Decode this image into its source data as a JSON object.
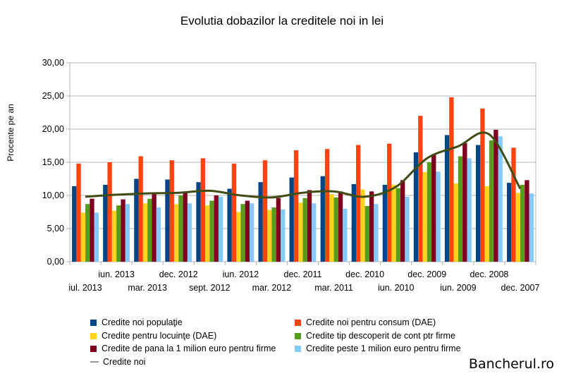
{
  "title": "Evolutia dobazilor la creditele noi in lei",
  "watermark": "Bancherul.ro",
  "chart_data": {
    "type": "bar",
    "title": "Evolutia dobazilor la creditele noi in lei",
    "ylabel": "Procente pe an",
    "xlabel": "",
    "ylim": [
      0,
      30
    ],
    "y_ticks": [
      "0,00",
      "5,00",
      "10,00",
      "15,00",
      "20,00",
      "25,00",
      "30,00"
    ],
    "grid": true,
    "legend_position": "bottom",
    "categories": [
      "iul. 2013",
      "iun. 2013",
      "mar. 2013",
      "dec. 2012",
      "sept. 2012",
      "iun. 2012",
      "mar. 2012",
      "dec. 2011",
      "mar. 2011",
      "dec. 2010",
      "iun. 2010",
      "dec. 2009",
      "iun. 2009",
      "dec. 2008",
      "dec. 2007"
    ],
    "x_labels_row1": [
      "",
      "iun. 2013",
      "",
      "dec. 2012",
      "",
      "iun. 2012",
      "",
      "dec. 2011",
      "",
      "dec. 2010",
      "",
      "dec. 2009",
      "",
      "dec. 2008",
      ""
    ],
    "x_labels_row2": [
      "iul. 2013",
      "",
      "mar. 2013",
      "",
      "sept. 2012",
      "",
      "mar. 2012",
      "",
      "mar. 2011",
      "",
      "iun. 2010",
      "",
      "iun. 2009",
      "",
      "dec. 2007"
    ],
    "series": [
      {
        "name": "Credite noi populaţie",
        "color": "#004586",
        "values": [
          11.4,
          11.6,
          12.5,
          12.4,
          12.0,
          11.0,
          12.0,
          12.7,
          12.9,
          11.7,
          11.6,
          16.5,
          19.1,
          17.6,
          11.9
        ]
      },
      {
        "name": "Credite noi pentru consum (DAE)",
        "color": "#ff420e",
        "values": [
          14.8,
          15.0,
          15.9,
          15.3,
          15.6,
          14.8,
          15.3,
          16.8,
          17.0,
          17.6,
          17.8,
          22.0,
          24.8,
          23.1,
          17.2
        ]
      },
      {
        "name": "Credite pentru locuinţe (DAE)",
        "color": "#ffd320",
        "values": [
          7.4,
          7.7,
          8.8,
          8.7,
          8.5,
          7.5,
          7.8,
          8.9,
          10.2,
          10.9,
          11.6,
          13.5,
          11.8,
          11.4,
          10.4
        ]
      },
      {
        "name": "Credite tip descoperit de cont ptr firme",
        "color": "#579d1c",
        "values": [
          8.7,
          8.5,
          9.5,
          10.0,
          9.2,
          8.7,
          8.2,
          9.6,
          9.7,
          8.4,
          11.1,
          15.0,
          15.9,
          18.3,
          11.6
        ]
      },
      {
        "name": "Credite de pana la 1 milion euro pentru firme",
        "color": "#7e0021",
        "values": [
          9.5,
          9.4,
          10.2,
          10.6,
          10.0,
          9.2,
          9.6,
          10.8,
          10.6,
          10.6,
          12.3,
          16.2,
          17.9,
          19.9,
          12.3
        ]
      },
      {
        "name": "Credite peste 1 milion euro pentru firme",
        "color": "#83caff",
        "values": [
          7.4,
          8.7,
          8.2,
          8.8,
          9.8,
          8.8,
          7.9,
          8.8,
          8.0,
          8.7,
          9.8,
          13.6,
          15.6,
          18.9,
          10.3
        ]
      }
    ],
    "line_series": {
      "name": "Credite noi",
      "color": "#3f4d14",
      "values": [
        9.8,
        10.1,
        10.3,
        10.4,
        10.7,
        10.0,
        9.7,
        10.4,
        10.6,
        9.8,
        11.3,
        15.6,
        17.4,
        19.2,
        11.0
      ]
    }
  }
}
